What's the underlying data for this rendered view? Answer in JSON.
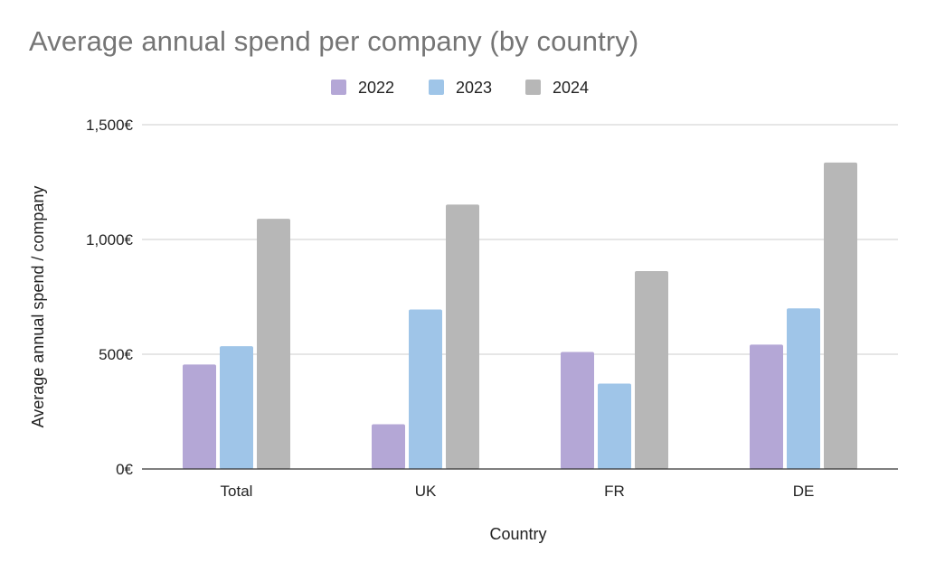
{
  "chart_data": {
    "type": "bar",
    "title": "Average annual spend per company (by country)",
    "xlabel": "Country",
    "ylabel": "Average annual spend / company",
    "categories": [
      "Total",
      "UK",
      "FR",
      "DE"
    ],
    "series": [
      {
        "name": "2022",
        "color": "#b4a7d6",
        "values": [
          455,
          195,
          510,
          542
        ]
      },
      {
        "name": "2023",
        "color": "#9fc5e8",
        "values": [
          535,
          695,
          372,
          700
        ]
      },
      {
        "name": "2024",
        "color": "#b7b7b7",
        "values": [
          1090,
          1152,
          862,
          1335
        ]
      }
    ],
    "yticks": [
      "0€",
      "500€",
      "1,000€",
      "1,500€"
    ],
    "ylim": [
      0,
      1500
    ],
    "grid": true,
    "legend_position": "top-center"
  }
}
